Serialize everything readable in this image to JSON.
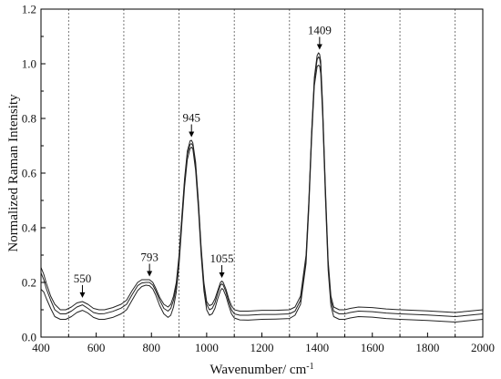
{
  "chart_data": {
    "type": "line",
    "title": "",
    "xlabel": "Wavenumber/ cm",
    "xlabel_superscript": "-1",
    "ylabel": "Normalized Raman Intensity",
    "xlim": [
      400,
      2000
    ],
    "ylim": [
      0.0,
      1.2
    ],
    "x_ticks": [
      400,
      600,
      800,
      1000,
      1200,
      1400,
      1600,
      1800,
      2000
    ],
    "x_tick_labels": [
      "400",
      "600",
      "800",
      "1000",
      "1200",
      "1400",
      "1600",
      "1800",
      "2000"
    ],
    "y_ticks": [
      0.0,
      0.2,
      0.4,
      0.6,
      0.8,
      1.0,
      1.2
    ],
    "y_tick_labels": [
      "0.0",
      "0.2",
      "0.4",
      "0.6",
      "0.8",
      "1.0",
      "1.2"
    ],
    "vertical_gridlines_x": [
      500,
      700,
      900,
      1100,
      1300,
      1500,
      1700,
      1900
    ],
    "grid": "vertical dashed lines",
    "line_color": "#222222",
    "annotations": [
      {
        "label": "550",
        "x": 550,
        "y": 0.137
      },
      {
        "label": "793",
        "x": 793,
        "y": 0.215
      },
      {
        "label": "945",
        "x": 945,
        "y": 0.725
      },
      {
        "label": "1055",
        "x": 1055,
        "y": 0.21
      },
      {
        "label": "1409",
        "x": 1409,
        "y": 1.045
      }
    ],
    "series": [
      {
        "x": [
          400,
          410,
          420,
          435,
          450,
          470,
          490,
          510,
          530,
          550,
          570,
          590,
          610,
          630,
          660,
          690,
          710,
          730,
          750,
          765,
          780,
          793,
          805,
          815,
          830,
          845,
          860,
          870,
          880,
          890,
          900,
          910,
          920,
          930,
          940,
          945,
          950,
          960,
          970,
          980,
          990,
          1000,
          1010,
          1020,
          1030,
          1040,
          1050,
          1055,
          1060,
          1070,
          1080,
          1090,
          1100,
          1120,
          1150,
          1200,
          1250,
          1300,
          1320,
          1340,
          1360,
          1370,
          1380,
          1390,
          1400,
          1405,
          1409,
          1413,
          1420,
          1430,
          1440,
          1450,
          1460,
          1480,
          1500,
          1520,
          1550,
          1600,
          1650,
          1700,
          1750,
          1800,
          1850,
          1900,
          1950,
          2000
        ],
        "values": [
          0.255,
          0.23,
          0.195,
          0.15,
          0.12,
          0.1,
          0.1,
          0.11,
          0.125,
          0.13,
          0.12,
          0.105,
          0.1,
          0.1,
          0.108,
          0.12,
          0.135,
          0.17,
          0.2,
          0.21,
          0.21,
          0.21,
          0.2,
          0.18,
          0.145,
          0.12,
          0.11,
          0.12,
          0.15,
          0.2,
          0.3,
          0.44,
          0.58,
          0.68,
          0.718,
          0.72,
          0.71,
          0.64,
          0.5,
          0.33,
          0.2,
          0.13,
          0.115,
          0.12,
          0.14,
          0.17,
          0.2,
          0.205,
          0.2,
          0.175,
          0.14,
          0.115,
          0.1,
          0.095,
          0.095,
          0.098,
          0.098,
          0.1,
          0.11,
          0.15,
          0.3,
          0.5,
          0.75,
          0.95,
          1.03,
          1.04,
          1.035,
          1.01,
          0.85,
          0.55,
          0.28,
          0.15,
          0.11,
          0.1,
          0.1,
          0.105,
          0.11,
          0.108,
          0.103,
          0.1,
          0.098,
          0.096,
          0.093,
          0.09,
          0.095,
          0.1
        ]
      },
      {
        "x": [
          400,
          410,
          420,
          435,
          450,
          470,
          490,
          510,
          530,
          550,
          570,
          590,
          610,
          630,
          660,
          690,
          710,
          730,
          750,
          765,
          780,
          793,
          805,
          815,
          830,
          845,
          860,
          870,
          880,
          890,
          900,
          910,
          920,
          930,
          940,
          945,
          950,
          960,
          970,
          980,
          990,
          1000,
          1010,
          1020,
          1030,
          1040,
          1050,
          1055,
          1060,
          1070,
          1080,
          1090,
          1100,
          1120,
          1150,
          1200,
          1250,
          1300,
          1320,
          1340,
          1360,
          1370,
          1380,
          1390,
          1400,
          1405,
          1409,
          1413,
          1420,
          1430,
          1440,
          1450,
          1460,
          1480,
          1500,
          1520,
          1550,
          1600,
          1650,
          1700,
          1750,
          1800,
          1850,
          1900,
          1950,
          2000
        ],
        "values": [
          0.235,
          0.21,
          0.175,
          0.135,
          0.1,
          0.085,
          0.085,
          0.095,
          0.11,
          0.118,
          0.105,
          0.09,
          0.085,
          0.086,
          0.094,
          0.106,
          0.12,
          0.155,
          0.188,
          0.198,
          0.2,
          0.2,
          0.19,
          0.17,
          0.135,
          0.105,
          0.095,
          0.105,
          0.135,
          0.185,
          0.285,
          0.43,
          0.57,
          0.67,
          0.705,
          0.708,
          0.7,
          0.63,
          0.49,
          0.32,
          0.19,
          0.12,
          0.1,
          0.105,
          0.125,
          0.16,
          0.19,
          0.195,
          0.19,
          0.165,
          0.13,
          0.1,
          0.085,
          0.08,
          0.08,
          0.083,
          0.083,
          0.085,
          0.095,
          0.135,
          0.29,
          0.49,
          0.74,
          0.94,
          1.015,
          1.025,
          1.02,
          0.995,
          0.835,
          0.535,
          0.265,
          0.135,
          0.095,
          0.085,
          0.085,
          0.09,
          0.095,
          0.093,
          0.088,
          0.085,
          0.083,
          0.081,
          0.078,
          0.075,
          0.08,
          0.085
        ]
      },
      {
        "x": [
          400,
          410,
          420,
          435,
          450,
          470,
          490,
          510,
          530,
          550,
          570,
          590,
          610,
          630,
          660,
          690,
          710,
          730,
          750,
          765,
          780,
          793,
          805,
          815,
          830,
          845,
          860,
          870,
          880,
          890,
          900,
          910,
          920,
          930,
          940,
          945,
          950,
          960,
          970,
          980,
          990,
          1000,
          1010,
          1020,
          1030,
          1040,
          1050,
          1055,
          1060,
          1070,
          1080,
          1090,
          1100,
          1120,
          1150,
          1200,
          1250,
          1300,
          1320,
          1340,
          1360,
          1370,
          1380,
          1390,
          1400,
          1405,
          1409,
          1413,
          1420,
          1430,
          1440,
          1450,
          1460,
          1480,
          1500,
          1520,
          1550,
          1600,
          1650,
          1700,
          1750,
          1800,
          1850,
          1900,
          1950,
          2000
        ],
        "values": [
          0.175,
          0.165,
          0.14,
          0.105,
          0.075,
          0.065,
          0.065,
          0.075,
          0.09,
          0.098,
          0.088,
          0.072,
          0.065,
          0.065,
          0.072,
          0.085,
          0.1,
          0.135,
          0.17,
          0.185,
          0.19,
          0.188,
          0.176,
          0.155,
          0.115,
          0.085,
          0.072,
          0.08,
          0.11,
          0.165,
          0.265,
          0.41,
          0.55,
          0.65,
          0.69,
          0.695,
          0.688,
          0.61,
          0.47,
          0.3,
          0.17,
          0.1,
          0.08,
          0.085,
          0.105,
          0.14,
          0.17,
          0.178,
          0.174,
          0.15,
          0.115,
          0.085,
          0.07,
          0.063,
          0.062,
          0.065,
          0.066,
          0.068,
          0.08,
          0.12,
          0.27,
          0.47,
          0.72,
          0.92,
          0.99,
          0.995,
          0.992,
          0.965,
          0.81,
          0.51,
          0.245,
          0.115,
          0.075,
          0.065,
          0.065,
          0.07,
          0.075,
          0.073,
          0.068,
          0.065,
          0.063,
          0.061,
          0.058,
          0.055,
          0.06,
          0.065
        ]
      }
    ]
  }
}
